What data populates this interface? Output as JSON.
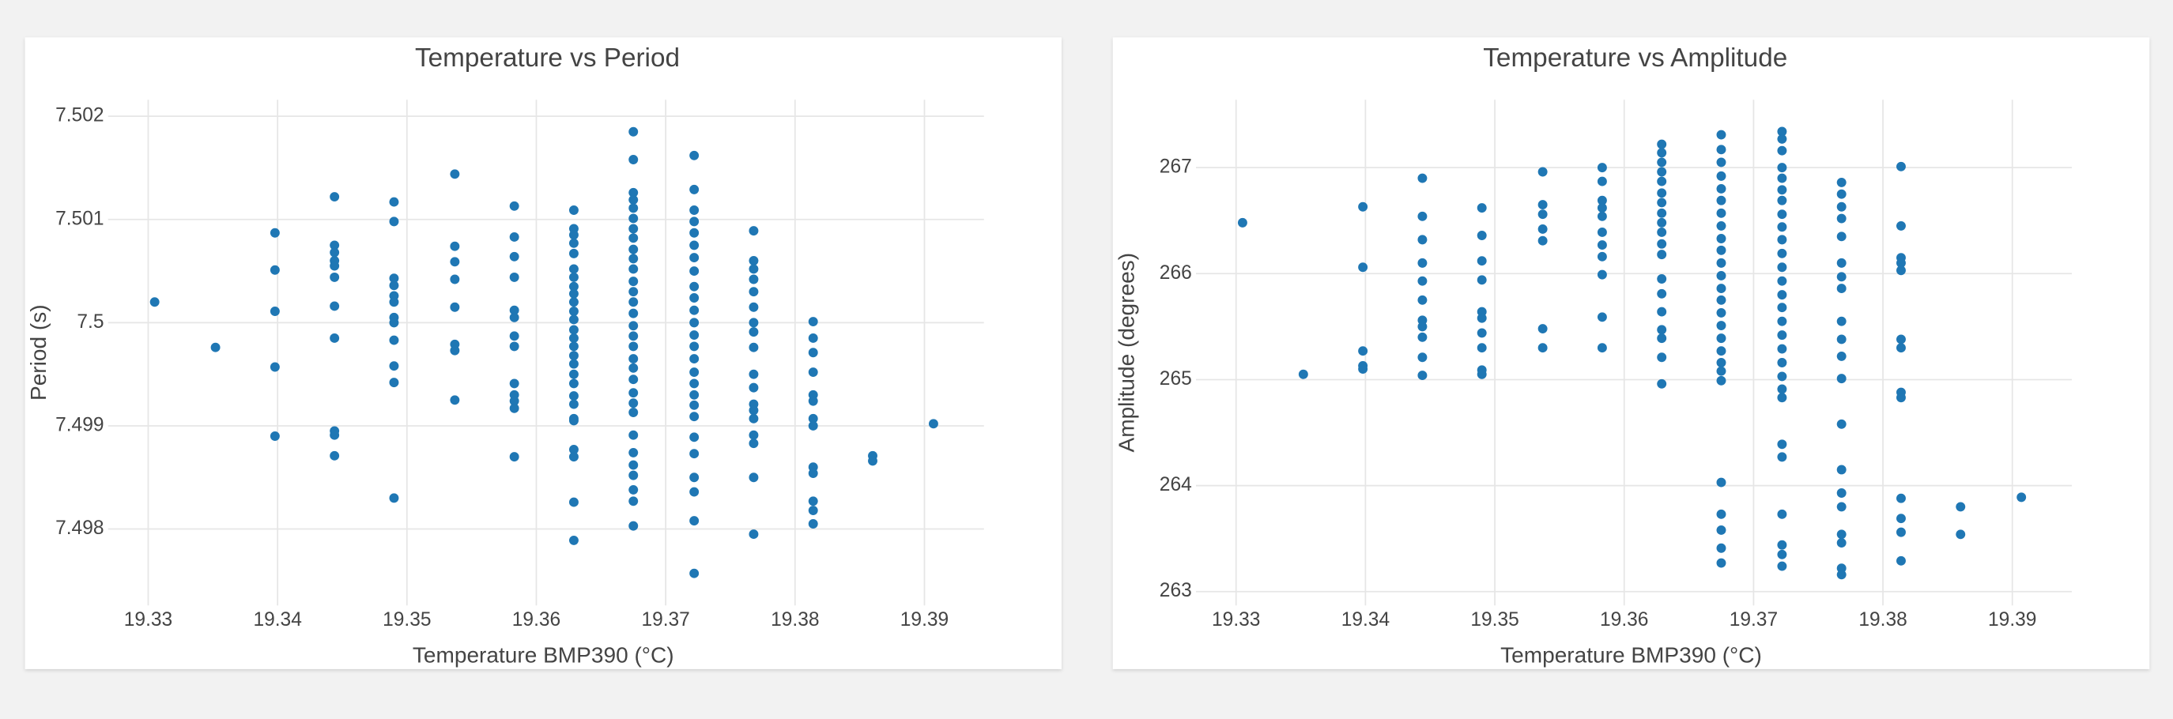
{
  "chart_data": [
    {
      "type": "scatter",
      "title": "Temperature vs Period",
      "x_label": "Temperature BMP390 (°C)",
      "y_label": "Period (s)",
      "color": "#1f77b4",
      "grid": true,
      "xlim": [
        19.3269,
        19.3946
      ],
      "ylim": [
        7.49726,
        7.50216
      ],
      "xticks": [
        19.33,
        19.34,
        19.35,
        19.36,
        19.37,
        19.38,
        19.39
      ],
      "yticks": [
        7.498,
        7.499,
        7.5,
        7.501,
        7.502
      ],
      "x": [
        19.3305,
        19.3352,
        19.3398,
        19.3398,
        19.3398,
        19.3398,
        19.3398,
        19.3444,
        19.3444,
        19.3444,
        19.3444,
        19.3444,
        19.3444,
        19.3444,
        19.3444,
        19.3444,
        19.3444,
        19.3444,
        19.349,
        19.349,
        19.349,
        19.349,
        19.349,
        19.349,
        19.349,
        19.349,
        19.349,
        19.349,
        19.349,
        19.349,
        19.3537,
        19.3537,
        19.3537,
        19.3537,
        19.3537,
        19.3537,
        19.3537,
        19.3537,
        19.3583,
        19.3583,
        19.3583,
        19.3583,
        19.3583,
        19.3583,
        19.3583,
        19.3583,
        19.3583,
        19.3583,
        19.3583,
        19.3583,
        19.3583,
        19.3629,
        19.3629,
        19.3629,
        19.3629,
        19.3629,
        19.3629,
        19.3629,
        19.3629,
        19.3629,
        19.3629,
        19.3629,
        19.3629,
        19.3629,
        19.3629,
        19.3629,
        19.3629,
        19.3629,
        19.3629,
        19.3629,
        19.3629,
        19.3629,
        19.3629,
        19.3629,
        19.3629,
        19.3629,
        19.3629,
        19.3629,
        19.3675,
        19.3675,
        19.3675,
        19.3675,
        19.3675,
        19.3675,
        19.3675,
        19.3675,
        19.3675,
        19.3675,
        19.3675,
        19.3675,
        19.3675,
        19.3675,
        19.3675,
        19.3675,
        19.3675,
        19.3675,
        19.3675,
        19.3675,
        19.3675,
        19.3675,
        19.3675,
        19.3675,
        19.3675,
        19.3675,
        19.3675,
        19.3675,
        19.3675,
        19.3675,
        19.3675,
        19.3722,
        19.3722,
        19.3722,
        19.3722,
        19.3722,
        19.3722,
        19.3722,
        19.3722,
        19.3722,
        19.3722,
        19.3722,
        19.3722,
        19.3722,
        19.3722,
        19.3722,
        19.3722,
        19.3722,
        19.3722,
        19.3722,
        19.3722,
        19.3722,
        19.3722,
        19.3722,
        19.3722,
        19.3722,
        19.3722,
        19.3768,
        19.3768,
        19.3768,
        19.3768,
        19.3768,
        19.3768,
        19.3768,
        19.3768,
        19.3768,
        19.3768,
        19.3768,
        19.3768,
        19.3768,
        19.3768,
        19.3768,
        19.3768,
        19.3768,
        19.3768,
        19.3814,
        19.3814,
        19.3814,
        19.3814,
        19.3814,
        19.3814,
        19.3814,
        19.3814,
        19.3814,
        19.3814,
        19.3814,
        19.3814,
        19.3814,
        19.386,
        19.386,
        19.3907
      ],
      "values": [
        7.5002,
        7.49976,
        7.50087,
        7.50051,
        7.50011,
        7.49957,
        7.4989,
        7.50122,
        7.50075,
        7.50068,
        7.5006,
        7.50055,
        7.50044,
        7.50016,
        7.49985,
        7.49895,
        7.49891,
        7.49871,
        7.50117,
        7.50098,
        7.50043,
        7.50036,
        7.50026,
        7.5002,
        7.50005,
        7.5,
        7.49983,
        7.49958,
        7.49942,
        7.4983,
        7.50144,
        7.50074,
        7.50059,
        7.50042,
        7.50015,
        7.49979,
        7.49973,
        7.49925,
        7.50113,
        7.50083,
        7.50064,
        7.50044,
        7.50012,
        7.50005,
        7.49987,
        7.49977,
        7.49941,
        7.4993,
        7.49924,
        7.49917,
        7.4987,
        7.50109,
        7.50091,
        7.50085,
        7.50077,
        7.50067,
        7.50052,
        7.50044,
        7.50035,
        7.50028,
        7.5002,
        7.50011,
        7.50003,
        7.49993,
        7.49985,
        7.49977,
        7.49968,
        7.4996,
        7.4995,
        7.49941,
        7.49929,
        7.49921,
        7.49907,
        7.49905,
        7.49877,
        7.4987,
        7.49826,
        7.49789,
        7.50185,
        7.50158,
        7.50126,
        7.50119,
        7.50111,
        7.50101,
        7.50091,
        7.50082,
        7.50071,
        7.50062,
        7.50052,
        7.5004,
        7.5003,
        7.5002,
        7.50009,
        7.49997,
        7.49987,
        7.49977,
        7.49965,
        7.49956,
        7.49945,
        7.49932,
        7.49922,
        7.49913,
        7.49891,
        7.49874,
        7.49862,
        7.49852,
        7.49838,
        7.49827,
        7.49803,
        7.50162,
        7.50129,
        7.50109,
        7.50098,
        7.50087,
        7.50075,
        7.50063,
        7.5005,
        7.50035,
        7.50024,
        7.50012,
        7.5,
        7.49988,
        7.49977,
        7.49965,
        7.49952,
        7.49941,
        7.4993,
        7.4992,
        7.49909,
        7.49889,
        7.49873,
        7.4985,
        7.49836,
        7.49808,
        7.49757,
        7.50089,
        7.5006,
        7.50052,
        7.50042,
        7.5003,
        7.50015,
        7.5,
        7.49991,
        7.49976,
        7.4995,
        7.49937,
        7.49921,
        7.49915,
        7.49907,
        7.49891,
        7.49883,
        7.4985,
        7.49795,
        7.50001,
        7.49985,
        7.49971,
        7.49952,
        7.4993,
        7.49924,
        7.49907,
        7.499,
        7.4986,
        7.49854,
        7.49827,
        7.49818,
        7.49805,
        7.49871,
        7.49866,
        7.49902
      ]
    },
    {
      "type": "scatter",
      "title": "Temperature vs Amplitude",
      "x_label": "Temperature BMP390 (°C)",
      "y_label": "Amplitude (degrees)",
      "color": "#1f77b4",
      "grid": true,
      "xlim": [
        19.3269,
        19.3946
      ],
      "ylim": [
        262.87,
        267.64
      ],
      "xticks": [
        19.33,
        19.34,
        19.35,
        19.36,
        19.37,
        19.38,
        19.39
      ],
      "yticks": [
        263,
        264,
        265,
        266,
        267
      ],
      "x": [
        19.3305,
        19.3352,
        19.3398,
        19.3398,
        19.3398,
        19.3398,
        19.3398,
        19.3444,
        19.3444,
        19.3444,
        19.3444,
        19.3444,
        19.3444,
        19.3444,
        19.3444,
        19.3444,
        19.3444,
        19.3444,
        19.349,
        19.349,
        19.349,
        19.349,
        19.349,
        19.349,
        19.349,
        19.349,
        19.349,
        19.349,
        19.3537,
        19.3537,
        19.3537,
        19.3537,
        19.3537,
        19.3537,
        19.3537,
        19.3583,
        19.3583,
        19.3583,
        19.3583,
        19.3583,
        19.3583,
        19.3583,
        19.3583,
        19.3583,
        19.3583,
        19.3583,
        19.3629,
        19.3629,
        19.3629,
        19.3629,
        19.3629,
        19.3629,
        19.3629,
        19.3629,
        19.3629,
        19.3629,
        19.3629,
        19.3629,
        19.3629,
        19.3629,
        19.3629,
        19.3629,
        19.3629,
        19.3629,
        19.3629,
        19.3675,
        19.3675,
        19.3675,
        19.3675,
        19.3675,
        19.3675,
        19.3675,
        19.3675,
        19.3675,
        19.3675,
        19.3675,
        19.3675,
        19.3675,
        19.3675,
        19.3675,
        19.3675,
        19.3675,
        19.3675,
        19.3675,
        19.3675,
        19.3675,
        19.3675,
        19.3675,
        19.3675,
        19.3675,
        19.3675,
        19.3722,
        19.3722,
        19.3722,
        19.3722,
        19.3722,
        19.3722,
        19.3722,
        19.3722,
        19.3722,
        19.3722,
        19.3722,
        19.3722,
        19.3722,
        19.3722,
        19.3722,
        19.3722,
        19.3722,
        19.3722,
        19.3722,
        19.3722,
        19.3722,
        19.3722,
        19.3722,
        19.3722,
        19.3722,
        19.3722,
        19.3722,
        19.3722,
        19.3768,
        19.3768,
        19.3768,
        19.3768,
        19.3768,
        19.3768,
        19.3768,
        19.3768,
        19.3768,
        19.3768,
        19.3768,
        19.3768,
        19.3768,
        19.3768,
        19.3768,
        19.3768,
        19.3768,
        19.3768,
        19.3768,
        19.3768,
        19.3814,
        19.3814,
        19.3814,
        19.3814,
        19.3814,
        19.3814,
        19.3814,
        19.3814,
        19.3814,
        19.3814,
        19.3814,
        19.3814,
        19.3814,
        19.386,
        19.386,
        19.3907
      ],
      "values": [
        266.48,
        265.05,
        266.63,
        266.06,
        265.27,
        265.13,
        265.1,
        266.9,
        266.54,
        266.32,
        266.1,
        265.93,
        265.75,
        265.56,
        265.5,
        265.4,
        265.21,
        265.04,
        266.62,
        266.36,
        266.12,
        265.94,
        265.64,
        265.58,
        265.44,
        265.3,
        265.09,
        265.05,
        266.96,
        266.65,
        266.56,
        266.42,
        266.31,
        265.48,
        265.3,
        267,
        266.87,
        266.69,
        266.62,
        266.54,
        266.39,
        266.27,
        266.16,
        265.99,
        265.59,
        265.3,
        267.22,
        267.14,
        267.05,
        266.96,
        266.87,
        266.76,
        266.67,
        266.57,
        266.48,
        266.39,
        266.28,
        266.18,
        265.95,
        265.81,
        265.64,
        265.47,
        265.39,
        265.21,
        264.96,
        267.31,
        267.17,
        267.05,
        266.92,
        266.8,
        266.69,
        266.57,
        266.45,
        266.33,
        266.22,
        266.1,
        265.98,
        265.86,
        265.75,
        265.63,
        265.51,
        265.39,
        265.27,
        265.16,
        265.08,
        264.99,
        264.03,
        263.73,
        263.58,
        263.41,
        263.27,
        267.34,
        267.27,
        267.16,
        267,
        266.9,
        266.79,
        266.69,
        266.56,
        266.44,
        266.32,
        266.19,
        266.06,
        265.93,
        265.8,
        265.68,
        265.55,
        265.42,
        265.29,
        265.16,
        265.03,
        264.91,
        264.83,
        264.39,
        264.27,
        263.73,
        263.44,
        263.35,
        263.24,
        266.86,
        266.75,
        266.63,
        266.52,
        266.35,
        266.1,
        265.97,
        265.86,
        265.55,
        265.38,
        265.22,
        265.01,
        264.58,
        264.15,
        263.93,
        263.8,
        263.54,
        263.46,
        263.22,
        263.16,
        267.01,
        266.45,
        266.15,
        266.1,
        266.03,
        265.38,
        265.3,
        264.88,
        264.83,
        263.88,
        263.69,
        263.56,
        263.29,
        263.8,
        263.54,
        263.89
      ]
    }
  ]
}
